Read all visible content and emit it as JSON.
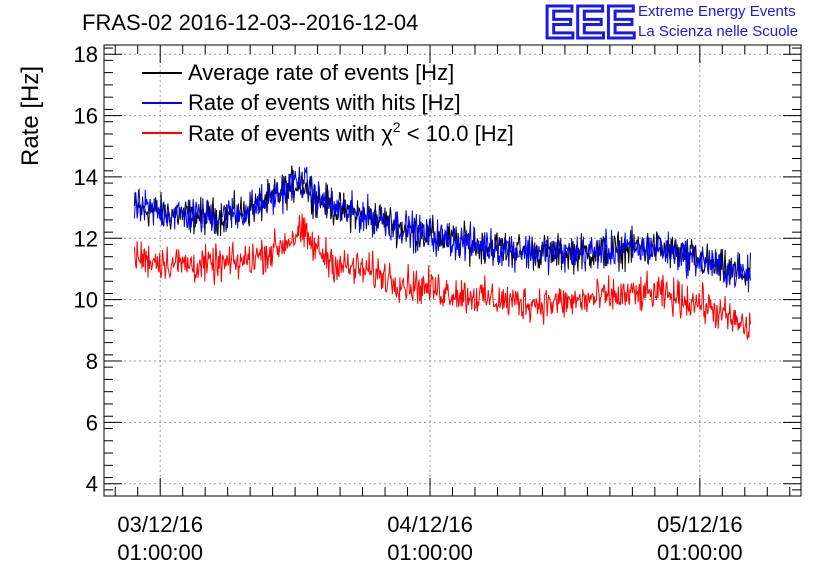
{
  "chart_data": {
    "type": "line",
    "title": "FRAS-02 2016-12-03--2016-12-04",
    "ylabel": "Rate [Hz]",
    "xlabel": "",
    "ylim": [
      3.6,
      18.3
    ],
    "yticks": [
      4,
      6,
      8,
      10,
      12,
      14,
      16,
      18
    ],
    "x_axis": {
      "unit": "hours since 03/12/16 01:00:00",
      "range": [
        -5.0,
        57.0
      ],
      "major_ticks": [
        0,
        24,
        48
      ],
      "tick_labels": [
        {
          "date": "03/12/16",
          "time": "01:00:00"
        },
        {
          "date": "04/12/16",
          "time": "01:00:00"
        },
        {
          "date": "05/12/16",
          "time": "01:00:00"
        }
      ]
    },
    "grid": true,
    "legend": {
      "position": "top-left",
      "entries": [
        {
          "label": "Average rate of events [Hz]",
          "color": "#000000"
        },
        {
          "label": "Rate of events with hits [Hz]",
          "color": "#0000ff"
        },
        {
          "label_prefix": "Rate of events with ",
          "label_symbol": "χ",
          "label_sup": "2",
          "label_suffix": " < 10.0 [Hz]",
          "color": "#ff0000"
        }
      ]
    },
    "series": [
      {
        "name": "Average rate of events [Hz]",
        "color": "#000000",
        "x": [
          -2.3,
          1,
          4,
          7,
          10,
          12.5,
          14,
          16,
          19,
          22,
          25,
          28,
          32,
          36,
          40,
          44,
          48,
          50,
          52.5
        ],
        "values": [
          13.0,
          12.8,
          12.7,
          12.8,
          13.3,
          13.9,
          13.3,
          12.9,
          12.7,
          12.3,
          12.0,
          11.8,
          11.6,
          11.5,
          11.6,
          11.7,
          11.3,
          11.0,
          10.8
        ]
      },
      {
        "name": "Rate of events with hits [Hz]",
        "color": "#0000ff",
        "x": [
          -2.3,
          1,
          4,
          7,
          10,
          12.5,
          14,
          16,
          19,
          22,
          25,
          28,
          32,
          36,
          40,
          44,
          48,
          50,
          52.5
        ],
        "values": [
          13.0,
          12.8,
          12.7,
          12.8,
          13.3,
          13.9,
          13.3,
          12.9,
          12.7,
          12.3,
          12.0,
          11.8,
          11.6,
          11.5,
          11.6,
          11.7,
          11.3,
          11.0,
          10.8
        ]
      },
      {
        "name": "Rate of events with χ2 < 10.0 [Hz]",
        "color": "#ff0000",
        "x": [
          -2.3,
          1,
          4,
          7,
          10,
          12.5,
          14,
          16,
          19,
          22,
          25,
          28,
          32,
          36,
          40,
          44,
          48,
          50,
          52.5
        ],
        "values": [
          11.4,
          11.2,
          11.1,
          11.2,
          11.6,
          12.2,
          11.6,
          11.1,
          10.9,
          10.5,
          10.3,
          10.1,
          9.9,
          9.9,
          10.1,
          10.2,
          9.9,
          9.5,
          9.0
        ]
      }
    ],
    "noise_amplitude_hz": 0.45
  },
  "logo": {
    "mark": "EEE",
    "line1": "Extreme Energy Events",
    "line2": "La Scienza nelle Scuole"
  }
}
